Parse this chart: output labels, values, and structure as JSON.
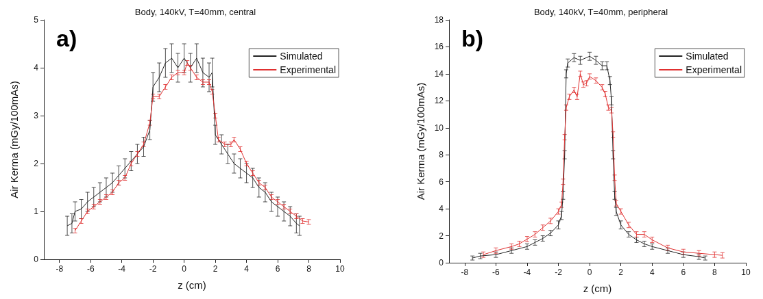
{
  "chart_data": [
    {
      "type": "line",
      "title": "Body, 140kV, T=40mm, central",
      "xlabel": "z (cm)",
      "ylabel": "Air Kerma (mGy/100mAs)",
      "annotations": [
        "a)"
      ],
      "xlim": [
        -9,
        10
      ],
      "xticks": [
        -8,
        -6,
        -4,
        -2,
        0,
        2,
        4,
        6,
        8,
        10
      ],
      "ylim": [
        0,
        5
      ],
      "yticks": [
        0,
        1,
        2,
        3,
        4,
        5
      ],
      "legend": "top right",
      "series": [
        {
          "name": "Simulated",
          "color": "#222222",
          "x": [
            -7.5,
            -7.2,
            -7,
            -6.6,
            -6.2,
            -5.8,
            -5.4,
            -5,
            -4.6,
            -4.2,
            -3.8,
            -3.4,
            -3,
            -2.6,
            -2.2,
            -2,
            -1.6,
            -1.2,
            -0.8,
            -0.4,
            0,
            0.4,
            0.8,
            1.2,
            1.6,
            1.8,
            2,
            2.4,
            2.8,
            3.2,
            3.6,
            4,
            4.4,
            4.8,
            5.2,
            5.6,
            6,
            6.4,
            6.8,
            7.2,
            7.4
          ],
          "values": [
            0.7,
            0.75,
            1.0,
            1.05,
            1.2,
            1.3,
            1.4,
            1.5,
            1.6,
            1.75,
            1.9,
            2.05,
            2.2,
            2.35,
            2.7,
            3.6,
            3.8,
            4.1,
            4.2,
            4.0,
            4.2,
            4.0,
            4.2,
            3.9,
            3.8,
            3.9,
            2.6,
            2.4,
            2.2,
            2.0,
            1.9,
            1.8,
            1.7,
            1.5,
            1.4,
            1.2,
            1.1,
            1.0,
            0.9,
            0.75,
            0.7
          ],
          "errors": [
            0.2,
            0.2,
            0.2,
            0.2,
            0.2,
            0.2,
            0.2,
            0.2,
            0.2,
            0.2,
            0.2,
            0.2,
            0.2,
            0.2,
            0.2,
            0.3,
            0.3,
            0.3,
            0.3,
            0.3,
            0.3,
            0.3,
            0.3,
            0.3,
            0.3,
            0.3,
            0.2,
            0.2,
            0.2,
            0.2,
            0.2,
            0.2,
            0.2,
            0.2,
            0.2,
            0.2,
            0.2,
            0.2,
            0.2,
            0.2,
            0.2
          ]
        },
        {
          "name": "Experimental",
          "color": "#e03030",
          "x": [
            -7,
            -6.6,
            -6.2,
            -5.8,
            -5.4,
            -5,
            -4.6,
            -4.2,
            -3.8,
            -3.4,
            -3,
            -2.6,
            -2.2,
            -2,
            -1.6,
            -1.2,
            -0.8,
            -0.4,
            0,
            0.2,
            0.4,
            0.8,
            1.2,
            1.6,
            1.8,
            2,
            2.2,
            2.6,
            3,
            3.2,
            3.6,
            4,
            4.4,
            4.8,
            5.2,
            5.6,
            6,
            6.4,
            6.8,
            7.2,
            7.6,
            8
          ],
          "values": [
            0.6,
            0.8,
            1.0,
            1.1,
            1.2,
            1.3,
            1.4,
            1.6,
            1.7,
            2.0,
            2.2,
            2.4,
            2.85,
            3.4,
            3.4,
            3.6,
            3.8,
            3.9,
            3.9,
            4.1,
            4.0,
            3.8,
            3.7,
            3.7,
            3.5,
            3.0,
            2.5,
            2.4,
            2.4,
            2.5,
            2.3,
            2.0,
            1.8,
            1.6,
            1.5,
            1.3,
            1.2,
            1.1,
            1.0,
            0.9,
            0.8,
            0.78
          ],
          "errors": [
            0.05,
            0.05,
            0.05,
            0.05,
            0.05,
            0.05,
            0.05,
            0.05,
            0.05,
            0.05,
            0.05,
            0.05,
            0.05,
            0.05,
            0.05,
            0.05,
            0.05,
            0.05,
            0.05,
            0.05,
            0.05,
            0.05,
            0.05,
            0.05,
            0.05,
            0.05,
            0.05,
            0.05,
            0.05,
            0.05,
            0.05,
            0.05,
            0.05,
            0.05,
            0.05,
            0.05,
            0.05,
            0.05,
            0.05,
            0.05,
            0.05,
            0.05
          ]
        }
      ]
    },
    {
      "type": "line",
      "title": "Body, 140kV, T=40mm, peripheral",
      "xlabel": "z (cm)",
      "ylabel": "Air Kerma (mGy/100mAs)",
      "annotations": [
        "b)"
      ],
      "xlim": [
        -9,
        10
      ],
      "xticks": [
        -8,
        -6,
        -4,
        -2,
        0,
        2,
        4,
        6,
        8,
        10
      ],
      "ylim": [
        0,
        18
      ],
      "yticks": [
        0,
        2,
        4,
        6,
        8,
        10,
        12,
        14,
        16,
        18
      ],
      "legend": "top right",
      "series": [
        {
          "name": "Simulated",
          "color": "#222222",
          "x": [
            -7.5,
            -7,
            -6,
            -5,
            -4,
            -3.5,
            -3,
            -2.5,
            -2,
            -1.8,
            -1.7,
            -1.6,
            -1.5,
            -1.4,
            -1,
            -0.6,
            0,
            0.4,
            0.8,
            1.1,
            1.3,
            1.4,
            1.5,
            1.6,
            1.7,
            2,
            2.5,
            3,
            3.5,
            4,
            5,
            6,
            7,
            7.4
          ],
          "values": [
            0.35,
            0.5,
            0.6,
            0.9,
            1.2,
            1.5,
            1.8,
            2.2,
            2.8,
            3.5,
            5,
            8,
            14,
            14.8,
            15.2,
            15,
            15.3,
            15,
            14.6,
            14.6,
            13.5,
            12,
            8,
            5,
            3.8,
            2.8,
            2.1,
            1.7,
            1.4,
            1.2,
            0.9,
            0.6,
            0.45,
            0.35
          ],
          "errors": [
            0.15,
            0.2,
            0.2,
            0.2,
            0.2,
            0.2,
            0.2,
            0.2,
            0.3,
            0.3,
            0.3,
            0.3,
            0.3,
            0.3,
            0.3,
            0.3,
            0.3,
            0.3,
            0.3,
            0.3,
            0.3,
            0.3,
            0.3,
            0.3,
            0.3,
            0.3,
            0.2,
            0.2,
            0.2,
            0.2,
            0.2,
            0.2,
            0.2,
            0.15
          ]
        },
        {
          "name": "Experimental",
          "color": "#e03030",
          "x": [
            -6.8,
            -6,
            -5,
            -4.5,
            -4,
            -3.5,
            -3,
            -2.5,
            -2,
            -1.8,
            -1.7,
            -1.6,
            -1.5,
            -1.3,
            -1,
            -0.8,
            -0.6,
            -0.4,
            -0.2,
            0,
            0.4,
            0.8,
            1,
            1.2,
            1.4,
            1.5,
            1.6,
            1.7,
            2,
            2.5,
            3,
            3.5,
            4,
            5,
            6,
            7,
            8,
            8.5
          ],
          "values": [
            0.6,
            0.9,
            1.2,
            1.4,
            1.75,
            2.1,
            2.6,
            3.1,
            3.8,
            4.3,
            6,
            9.3,
            11.5,
            12.3,
            12.8,
            12.3,
            14.0,
            13.2,
            13.3,
            13.8,
            13.5,
            13.0,
            12.5,
            11.5,
            11.3,
            9.5,
            6.3,
            4.4,
            3.8,
            2.8,
            2.1,
            2.1,
            1.7,
            1.1,
            0.8,
            0.7,
            0.6,
            0.55
          ],
          "errors": [
            0.2,
            0.2,
            0.2,
            0.2,
            0.2,
            0.2,
            0.2,
            0.2,
            0.2,
            0.2,
            0.2,
            0.2,
            0.2,
            0.2,
            0.2,
            0.2,
            0.2,
            0.2,
            0.2,
            0.2,
            0.2,
            0.2,
            0.2,
            0.2,
            0.2,
            0.2,
            0.2,
            0.2,
            0.2,
            0.2,
            0.2,
            0.2,
            0.2,
            0.2,
            0.2,
            0.2,
            0.2,
            0.2
          ]
        }
      ]
    }
  ]
}
